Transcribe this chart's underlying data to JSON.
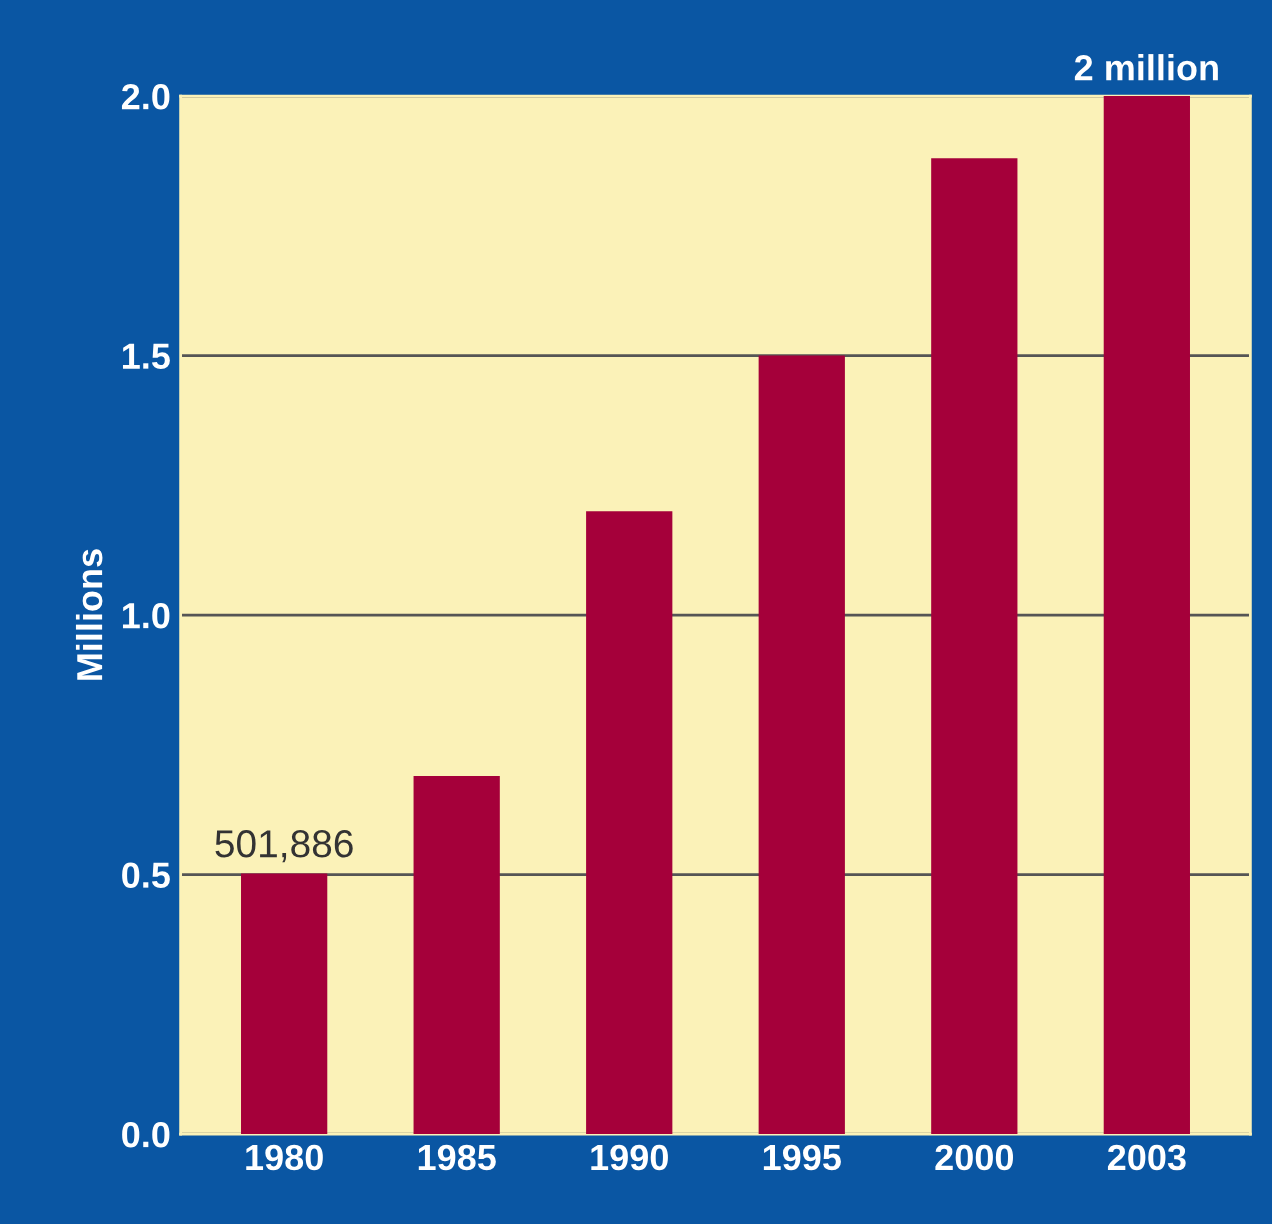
{
  "chart_data": {
    "type": "bar",
    "ylabel": "Millions",
    "categories": [
      "1980",
      "1985",
      "1990",
      "1995",
      "2000",
      "2003"
    ],
    "values": [
      0.501886,
      0.69,
      1.2,
      1.5,
      1.88,
      2.0
    ],
    "annotations": [
      {
        "text": "501,886",
        "x": "1980",
        "y": 0.501886
      }
    ],
    "value_labels": [
      null,
      null,
      null,
      null,
      null,
      "2 million"
    ],
    "color": "#a5003a",
    "ylim": [
      0,
      2.0
    ],
    "yticks": [
      {
        "value": 0,
        "label": "0.0"
      },
      {
        "value": 0.5,
        "label": "0.5"
      },
      {
        "value": 1.0,
        "label": "1.0"
      },
      {
        "value": 1.5,
        "label": "1.5"
      },
      {
        "value": 2.0,
        "label": "2.0"
      }
    ],
    "grid": "y"
  }
}
